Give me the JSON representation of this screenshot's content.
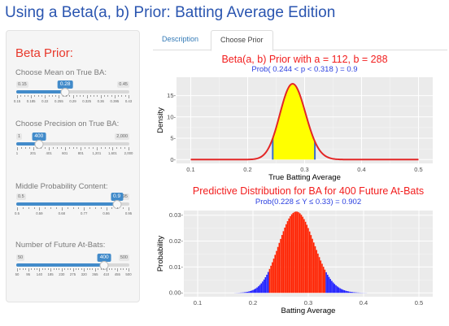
{
  "app_title": "Using a Beta(a, b) Prior: Batting Average Edition",
  "sidebar": {
    "heading": "Beta Prior:",
    "sliders": [
      {
        "label": "Choose Mean on True BA:",
        "min_label": "0.15",
        "max_label": "0.45",
        "value_label": "0.28",
        "fraction": 0.433,
        "ticks": [
          "0.15",
          "0.185",
          "0.22",
          "0.255",
          "0.29",
          "0.325",
          "0.36",
          "0.395",
          "0.43"
        ]
      },
      {
        "label": "Choose Precision on True BA:",
        "min_label": "1",
        "max_label": "2,000",
        "value_label": "400",
        "fraction": 0.2,
        "ticks": [
          "1",
          "201",
          "401",
          "601",
          "801",
          "1,201",
          "1,601",
          "2,000"
        ]
      },
      {
        "label": "Middle Probability Content:",
        "min_label": "0.5",
        "max_label": "0.95",
        "value_label": "0.9",
        "fraction": 0.889,
        "ticks": [
          "0.5",
          "0.59",
          "0.68",
          "0.77",
          "0.86",
          "0.95"
        ]
      },
      {
        "label": "Number of Future At-Bats:",
        "min_label": "50",
        "max_label": "500",
        "value_label": "400",
        "fraction": 0.778,
        "ticks": [
          "50",
          "95",
          "140",
          "185",
          "230",
          "275",
          "320",
          "365",
          "410",
          "455",
          "500"
        ]
      }
    ]
  },
  "tabs": [
    {
      "label": "Description",
      "active": false
    },
    {
      "label": "Choose Prior",
      "active": true
    }
  ],
  "chart_data": [
    {
      "type": "area",
      "title": "Beta(a, b) Prior with a = 112, b = 288",
      "subtitle": "Prob( 0.244 < p < 0.318 ) = 0.9",
      "xlabel": "True Batting Average",
      "ylabel": "Density",
      "xlim": [
        0.075,
        0.525
      ],
      "ylim": [
        -0.9,
        19.3
      ],
      "xticks": [
        0.1,
        0.2,
        0.3,
        0.4,
        0.5
      ],
      "xtick_labels": [
        "0.1",
        "0.2",
        "0.3",
        "0.4",
        "0.5"
      ],
      "yticks": [
        0,
        5,
        10,
        15
      ],
      "ytick_labels": [
        "0-",
        "5-",
        "10-",
        "15-"
      ],
      "beta_a": 112,
      "beta_b": 288,
      "shaded_interval": [
        0.244,
        0.318
      ],
      "colors": {
        "curve": "#e32626",
        "fill": "#ffff00",
        "bounds": "#3a6fcf",
        "grid_bg": "#ebebeb"
      },
      "grid": true
    },
    {
      "type": "bar",
      "title": "Predictive Distribution for BA for 400 Future At-Bats",
      "subtitle": "Prob(0.228 ≤ Y ≤ 0.33) = 0.902",
      "xlabel": "Batting Average",
      "ylabel": "Probability",
      "xlim": [
        0.075,
        0.525
      ],
      "ylim": [
        -0.0015,
        0.0318
      ],
      "xticks": [
        0.1,
        0.2,
        0.3,
        0.4,
        0.5
      ],
      "xtick_labels": [
        "0.1",
        "0.2",
        "0.3",
        "0.4",
        "0.5"
      ],
      "yticks": [
        0,
        0.01,
        0.02,
        0.03
      ],
      "ytick_labels": [
        "0.00-",
        "0.01-",
        "0.02-",
        "0.03-"
      ],
      "n_at_bats": 400,
      "beta_a": 112,
      "beta_b": 288,
      "interval": [
        0.228,
        0.33
      ],
      "colors": {
        "inside": "#ff2200",
        "outside": "#1f1fff",
        "grid_bg": "#ebebeb"
      },
      "grid": true
    }
  ]
}
